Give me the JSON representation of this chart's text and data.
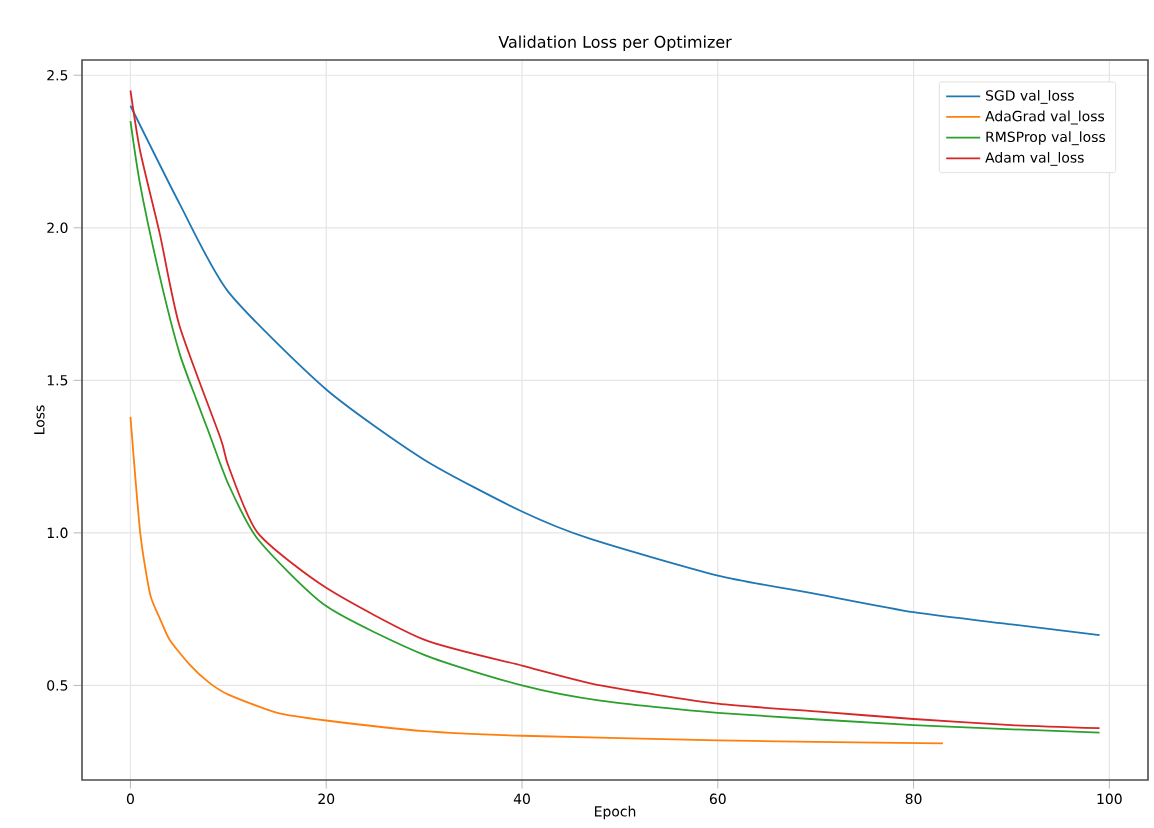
{
  "chart_data": {
    "type": "line",
    "title": "Validation Loss per Optimizer",
    "xlabel": "Epoch",
    "ylabel": "Loss",
    "xlim": [
      -4.95,
      103.95
    ],
    "ylim": [
      0.19,
      2.55
    ],
    "xticks": [
      0,
      20,
      40,
      60,
      80,
      100
    ],
    "yticks": [
      {
        "value": 0.5,
        "label": "0.5"
      },
      {
        "value": 1.0,
        "label": "1.0"
      },
      {
        "value": 1.5,
        "label": "1.5"
      },
      {
        "value": 2.0,
        "label": "2.0"
      },
      {
        "value": 2.5,
        "label": "2.5"
      }
    ],
    "grid": true,
    "legend": "top right",
    "line_style": "solid",
    "marker": "none",
    "series": [
      {
        "name": "SGD val_loss",
        "color": "#1f77b4",
        "x": [
          0,
          5,
          10,
          20,
          30,
          40,
          47,
          60,
          70,
          80,
          90,
          99
        ],
        "values": [
          2.4,
          2.08,
          1.79,
          1.47,
          1.24,
          1.07,
          0.98,
          0.86,
          0.8,
          0.74,
          0.7,
          0.665
        ]
      },
      {
        "name": "AdaGrad val_loss",
        "color": "#ff7f0e",
        "x": [
          0,
          1,
          2,
          3,
          4,
          6,
          8,
          10,
          15,
          20,
          30,
          40,
          60,
          70,
          83
        ],
        "values": [
          1.38,
          1.0,
          0.8,
          0.72,
          0.65,
          0.57,
          0.51,
          0.47,
          0.41,
          0.385,
          0.35,
          0.335,
          0.32,
          0.315,
          0.31
        ]
      },
      {
        "name": "RMSProp val_loss",
        "color": "#2ca02c",
        "x": [
          0,
          1,
          3,
          5,
          6.7,
          8,
          10,
          13,
          20,
          30,
          40,
          48,
          60,
          80,
          99
        ],
        "values": [
          2.35,
          2.14,
          1.84,
          1.59,
          1.44,
          1.33,
          1.16,
          0.98,
          0.76,
          0.6,
          0.5,
          0.45,
          0.41,
          0.37,
          0.345
        ]
      },
      {
        "name": "Adam val_loss",
        "color": "#d62728",
        "x": [
          0,
          1,
          3,
          5,
          9.2,
          10,
          13,
          20,
          30,
          40,
          48,
          60,
          70,
          80,
          90,
          99
        ],
        "values": [
          2.45,
          2.25,
          1.98,
          1.68,
          1.31,
          1.22,
          1.0,
          0.82,
          0.65,
          0.565,
          0.5,
          0.44,
          0.415,
          0.39,
          0.37,
          0.36
        ]
      }
    ]
  }
}
